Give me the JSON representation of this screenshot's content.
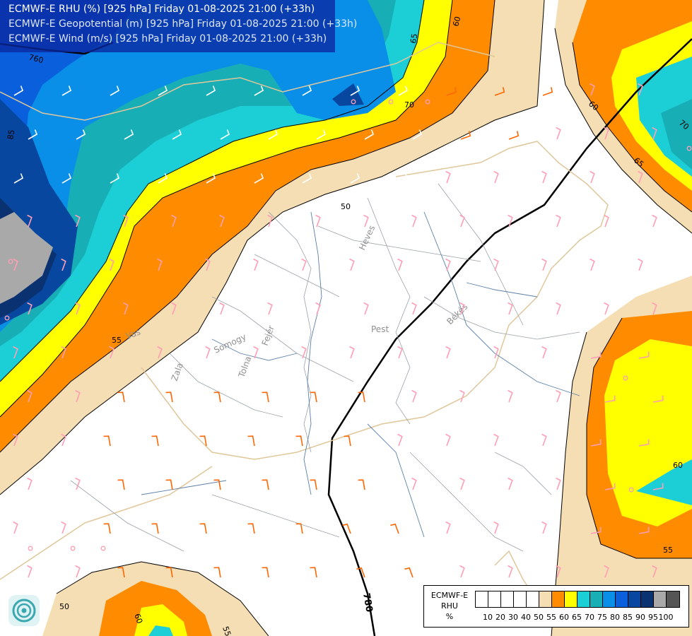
{
  "header": {
    "line1": "ECMWF-E RHU (%) [925 hPa] Friday 01-08-2025 21:00 (+33h)",
    "line2": "ECMWF-E Geopotential (m) [925 hPa] Friday 01-08-2025 21:00 (+33h)",
    "line3": "ECMWF-E Wind (m/s) [925 hPa] Friday 01-08-2025 21:00 (+33h)"
  },
  "legend": {
    "title_line1": "ECMWF-E",
    "title_line2": "RHU",
    "title_line3": "%",
    "ticks": [
      "10",
      "20",
      "30",
      "40",
      "50",
      "55",
      "60",
      "65",
      "70",
      "75",
      "80",
      "85",
      "90",
      "95",
      "100"
    ],
    "colors": [
      "#ffffff",
      "#ffffff",
      "#ffffff",
      "#ffffff",
      "#ffffff",
      "#f5deb3",
      "#ff8c00",
      "#ffff00",
      "#1ccfd6",
      "#18aeb5",
      "#0a8fe8",
      "#0a5fdc",
      "#07479f",
      "#0a3170",
      "#a9a9a9",
      "#555555"
    ]
  },
  "map": {
    "region_labels": [
      "Heves",
      "Pest",
      "Békés",
      "Fejér",
      "Somogy",
      "Tolna",
      "Zala",
      "Vas"
    ],
    "contour_labels": [
      "60",
      "65",
      "70",
      "85",
      "50",
      "55",
      "65",
      "60",
      "55",
      "70",
      "50",
      "60",
      "55",
      "60",
      "780",
      "760"
    ],
    "colors": {
      "rhu_50_55": "#f5deb3",
      "rhu_55_60": "#ff8c00",
      "rhu_60_65": "#ffff00",
      "rhu_65_70": "#1ccfd6",
      "rhu_70_75": "#18aeb5",
      "rhu_75_80": "#0a8fe8",
      "rhu_80_85": "#0a5fdc",
      "rhu_85_90": "#07479f",
      "rhu_90_95": "#0a3170",
      "rhu_95_100": "#a9a9a9",
      "wind_barb_strong": "#ff6600",
      "wind_barb_weak": "#ff9eb5"
    },
    "logo_icon": "ecmwf-swirl-icon"
  }
}
